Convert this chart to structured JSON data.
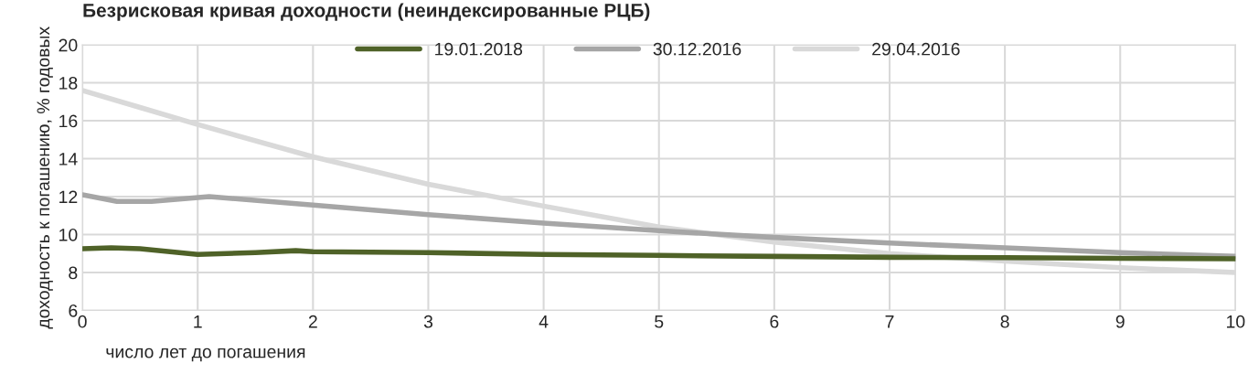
{
  "chart_data": {
    "type": "line",
    "title": "Безрисковая кривая доходности (неиндексированные РЦБ)",
    "xlabel": "число лет до погашения",
    "ylabel": "доходность к погашению, % годовых",
    "xlim": [
      0,
      10
    ],
    "xticks": [
      0,
      1,
      2,
      3,
      4,
      5,
      6,
      7,
      8,
      9,
      10
    ],
    "ylim": [
      6,
      20
    ],
    "yticks": [
      6,
      8,
      10,
      12,
      14,
      16,
      18,
      20
    ],
    "grid": true,
    "legend": "top",
    "marker": "none",
    "line_style": "solid",
    "series": [
      {
        "name": "19.01.2018",
        "color": "#4f6228",
        "x": [
          0,
          0.25,
          0.5,
          1,
          1.5,
          1.85,
          2,
          3,
          4,
          5,
          6,
          7,
          8,
          9,
          10
        ],
        "values": [
          9.25,
          9.3,
          9.25,
          8.95,
          9.05,
          9.15,
          9.1,
          9.05,
          8.95,
          8.9,
          8.85,
          8.8,
          8.78,
          8.75,
          8.72
        ]
      },
      {
        "name": "30.12.2016",
        "color": "#a6a6a6",
        "x": [
          0,
          0.3,
          0.6,
          1.1,
          2,
          3,
          4,
          5,
          6,
          7,
          8,
          9,
          10
        ],
        "values": [
          12.1,
          11.75,
          11.75,
          12.0,
          11.55,
          11.05,
          10.6,
          10.2,
          9.85,
          9.55,
          9.3,
          9.05,
          8.85
        ]
      },
      {
        "name": "29.04.2016",
        "color": "#d9d9d9",
        "x": [
          0,
          0.5,
          1,
          2,
          3,
          4,
          5,
          6,
          7,
          8,
          9,
          10
        ],
        "values": [
          17.6,
          16.7,
          15.8,
          14.1,
          12.65,
          11.5,
          10.4,
          9.6,
          9.0,
          8.6,
          8.25,
          8.0
        ]
      }
    ]
  }
}
